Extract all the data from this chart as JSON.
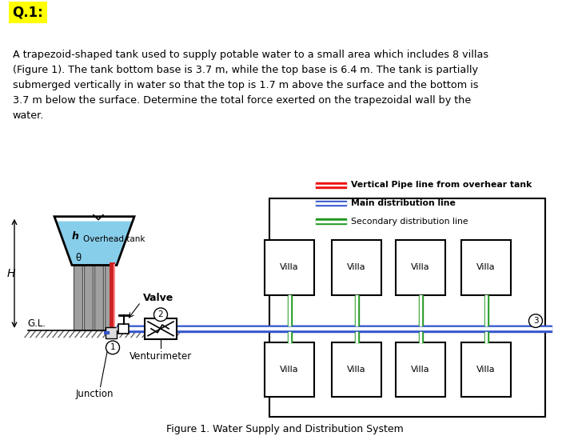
{
  "title_text": "Q.1:",
  "title_bg": "#FFFF00",
  "body_text": "A trapezoid-shaped tank used to supply potable water to a small area which includes 8 villas\n(Figure 1). The tank bottom base is 3.7 m, while the top base is 6.4 m. The tank is partially\nsubmerged vertically in water so that the top is 1.7 m above the surface and the bottom is\n3.7 m below the surface. Determine the total force exerted on the trapezoidal wall by the\nwater.",
  "figure_caption": "Figure 1. Water Supply and Distribution System",
  "legend_items": [
    {
      "label": "Vertical Pipe line from overhear tank",
      "color": "#EE1111",
      "lw": 4,
      "inner": "#FFFFFF"
    },
    {
      "label": "Main distribution line",
      "color": "#3355CC",
      "lw": 4,
      "inner": "#FFFFFF"
    },
    {
      "label": "Secondary distribution line",
      "color": "#229922",
      "lw": 4,
      "inner": "#FFFFFF"
    }
  ],
  "tank_water_color": "#87CEEB",
  "tank_outline_color": "#000000",
  "pipe_red_color": "#CC2222",
  "pipe_blue_color": "#3355CC",
  "pipe_green_color": "#229922",
  "pillar_color": "#A0A0A0",
  "pillar_edge": "#555555",
  "ground_hatch_color": "#555555",
  "label_H": "H",
  "label_GL": "G.L.",
  "label_h": "h",
  "label_theta": "θ",
  "label_overhead": "Overhead tank",
  "label_valve": "Valve",
  "label_venturimeter": "Venturimeter",
  "label_junction": "Junction",
  "label_villa": "Villa",
  "bg_color": "#FFFFFF"
}
